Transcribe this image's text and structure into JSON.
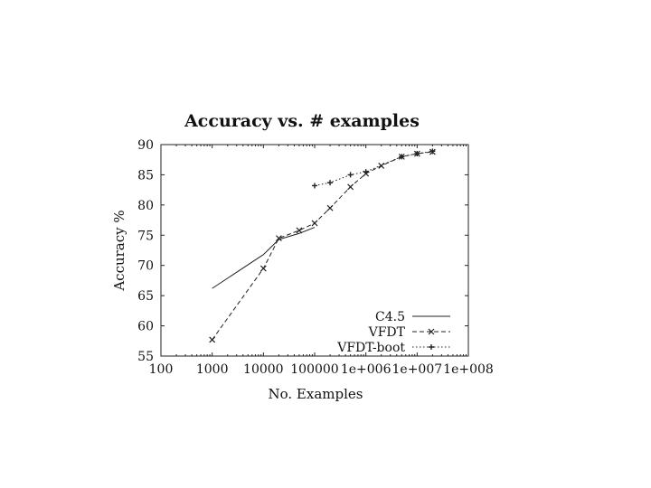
{
  "chart_data": {
    "type": "line",
    "title": "Accuracy vs. # examples",
    "xlabel": "No. Examples",
    "ylabel": "Accuracy %",
    "x_scale": "log",
    "xlim": [
      100,
      100000000
    ],
    "ylim": [
      55,
      90
    ],
    "x_ticks": [
      100,
      1000,
      10000,
      100000,
      1000000,
      10000000,
      100000000
    ],
    "x_tick_labels": [
      "100",
      "1000",
      "10000",
      "100000",
      "1e+006",
      "1e+007",
      "1e+008"
    ],
    "y_ticks": [
      55,
      60,
      65,
      70,
      75,
      80,
      85,
      90
    ],
    "y_tick_labels": [
      "55",
      "60",
      "65",
      "70",
      "75",
      "80",
      "85",
      "90"
    ],
    "grid": false,
    "legend_position": "bottom-right",
    "series": [
      {
        "name": "C4.5",
        "style": "solid",
        "marker": "none",
        "color": "#222222",
        "x": [
          1000,
          10000,
          20000,
          50000,
          100000
        ],
        "y": [
          66.2,
          71.8,
          74.3,
          75.3,
          76.3
        ]
      },
      {
        "name": "VFDT",
        "style": "dashed",
        "marker": "x",
        "color": "#222222",
        "x": [
          1000,
          10000,
          20000,
          50000,
          100000,
          200000,
          500000,
          1000000,
          2000000,
          5000000,
          10000000,
          20000000
        ],
        "y": [
          57.7,
          69.5,
          74.5,
          75.8,
          77.0,
          79.5,
          83.0,
          85.2,
          86.5,
          88.0,
          88.5,
          88.8
        ]
      },
      {
        "name": "VFDT-boot",
        "style": "dotted",
        "marker": "plus",
        "color": "#222222",
        "x": [
          100000,
          200000,
          500000,
          1000000,
          5000000,
          10000000,
          20000000
        ],
        "y": [
          83.2,
          83.7,
          85.0,
          85.5,
          88.0,
          88.5,
          88.9
        ]
      }
    ]
  }
}
